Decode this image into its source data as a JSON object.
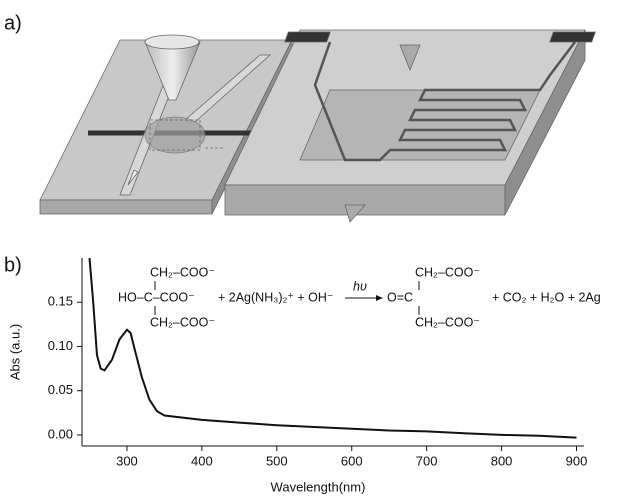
{
  "panel_labels": [
    "a)",
    "b)"
  ],
  "equation": {
    "reactant_top": "CH₂–COO⁻",
    "reactant_middle": "HO–C–COO⁻",
    "reactant_bottom": "CH₂–COO⁻",
    "reagents": "+ 2Ag(NH₃)₂⁺ + OH⁻",
    "arrow_label": "hυ",
    "product_top": "CH₂–COO⁻",
    "product_middle": "O=C",
    "product_bottom": "CH₂–COO⁻",
    "byproducts": "+ CO₂ + H₂O + 2Ag"
  },
  "chart_data": {
    "type": "line",
    "x_label": "Wavelength(nm)",
    "y_label": "Abs (a.u.)",
    "x": [
      250,
      255,
      260,
      265,
      270,
      280,
      290,
      300,
      305,
      310,
      320,
      330,
      340,
      350,
      400,
      450,
      500,
      550,
      600,
      650,
      700,
      750,
      800,
      850,
      900
    ],
    "values": [
      0.2,
      0.15,
      0.09,
      0.075,
      0.073,
      0.085,
      0.108,
      0.119,
      0.115,
      0.098,
      0.065,
      0.04,
      0.027,
      0.022,
      0.017,
      0.014,
      0.011,
      0.009,
      0.007,
      0.005,
      0.004,
      0.002,
      0.0,
      -0.001,
      -0.003
    ],
    "color": "#111111",
    "xlim": [
      240,
      910
    ],
    "xticks": [
      300,
      400,
      500,
      600,
      700,
      800,
      900
    ],
    "ylim": [
      -0.0125,
      0.2
    ],
    "yticks": [
      {
        "value": 0,
        "label": "0.00"
      },
      0.05,
      {
        "value": 0.1,
        "label": "0.10"
      },
      0.15
    ]
  }
}
